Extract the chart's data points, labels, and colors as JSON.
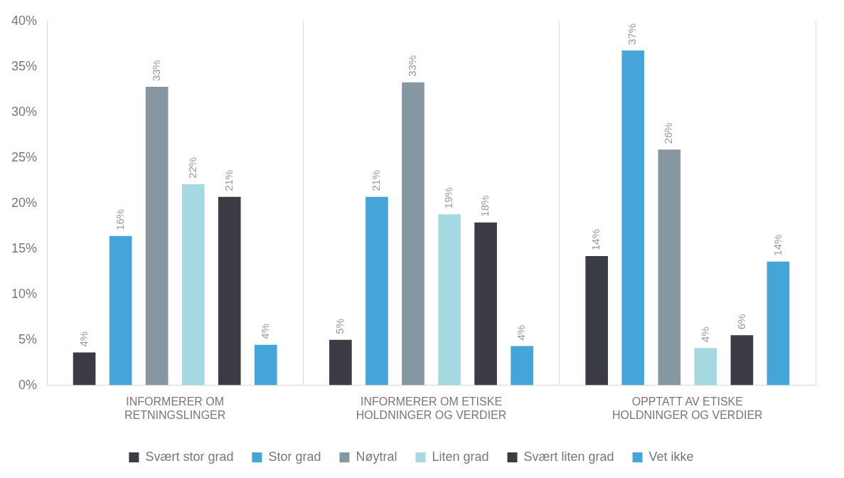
{
  "chart_data": {
    "type": "bar",
    "categories": [
      "INFORMERER OM RETNINGSLINGER",
      "INFORMERER OM ETISKE HOLDNINGER OG VERDIER",
      "OPPTATT AV ETISKE HOLDNINGER OG VERDIER"
    ],
    "series": [
      {
        "name": "Svært stor grad",
        "color": "#3b3c43",
        "values": [
          3.6,
          5.0,
          14.2
        ],
        "value_labels": [
          "4%",
          "5%",
          "14%"
        ]
      },
      {
        "name": "Stor grad",
        "color": "#45a5d8",
        "values": [
          16.4,
          20.7,
          36.8
        ],
        "value_labels": [
          "16%",
          "21%",
          "37%"
        ]
      },
      {
        "name": "Nøytral",
        "color": "#8697a2",
        "values": [
          32.8,
          33.3,
          25.9
        ],
        "value_labels": [
          "33%",
          "33%",
          "26%"
        ]
      },
      {
        "name": "Liten grad",
        "color": "#a5d8e1",
        "values": [
          22.1,
          18.8,
          4.1
        ],
        "value_labels": [
          "22%",
          "19%",
          "4%"
        ]
      },
      {
        "name": "Svært liten grad",
        "color": "#3b3c43",
        "values": [
          20.7,
          17.9,
          5.5
        ],
        "value_labels": [
          "21%",
          "18%",
          "6%"
        ]
      },
      {
        "name": "Vet ikke",
        "color": "#45a5d8",
        "values": [
          4.45,
          4.3,
          13.6
        ],
        "value_labels": [
          "4%",
          "4%",
          "14%"
        ]
      }
    ],
    "ylim": [
      0,
      40
    ],
    "yticks": [
      {
        "value": 0,
        "label": "0%"
      },
      {
        "value": 5,
        "label": "5%"
      },
      {
        "value": 10,
        "label": "10%"
      },
      {
        "value": 15,
        "label": "15%"
      },
      {
        "value": 20,
        "label": "20%"
      },
      {
        "value": 25,
        "label": "25%"
      },
      {
        "value": 30,
        "label": "30%"
      },
      {
        "value": 35,
        "label": "35%"
      },
      {
        "value": 40,
        "label": "40%"
      }
    ],
    "grid": "x",
    "legend": "bottom"
  }
}
